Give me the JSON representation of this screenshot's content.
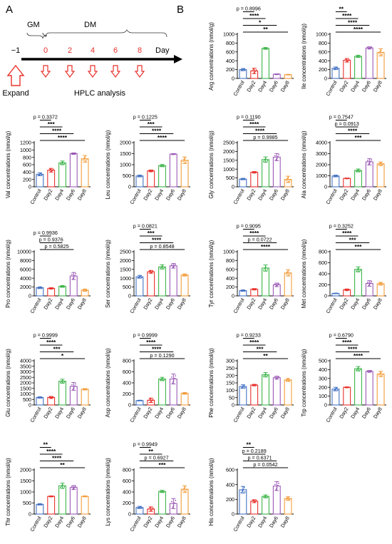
{
  "panel_labels": {
    "a": "A",
    "b": "B"
  },
  "timeline": {
    "gm_label": "GM",
    "dm_label": "DM",
    "axis_label": "Day",
    "ticks": [
      "−1",
      "0",
      "2",
      "4",
      "6",
      "8"
    ],
    "expand_label": "Expand",
    "hplc_label": "HPLC analysis"
  },
  "colors": {
    "Control": "#4472C4",
    "Day2": "#E8302A",
    "Day4": "#3CB54A",
    "Day6": "#9B59B6",
    "Day8": "#F39C3A",
    "arrow_red": "#E8302A"
  },
  "chart_data": [
    {
      "type": "bar",
      "ylabel": "Arg concentrations (nmol/g)",
      "categories": [
        "Control",
        "Day2",
        "Day4",
        "Day6",
        "Day8"
      ],
      "values": [
        200,
        170,
        680,
        95,
        85
      ],
      "errors": [
        25,
        60,
        20,
        8,
        6
      ],
      "ylim": [
        0,
        1000
      ],
      "yticks": [
        0,
        200,
        400,
        600,
        800,
        1000
      ],
      "sig": [
        {
          "to": "Day2",
          "label": "p = 0.8996"
        },
        {
          "to": "Day4",
          "label": "****"
        },
        {
          "to": "Day6",
          "label": "*"
        },
        {
          "to": "Day8",
          "label": "**"
        }
      ]
    },
    {
      "type": "bar",
      "ylabel": "Ile concentrations (nmol/g)",
      "categories": [
        "Control",
        "Day2",
        "Day4",
        "Day6",
        "Day8"
      ],
      "values": [
        230,
        410,
        500,
        690,
        590
      ],
      "errors": [
        30,
        40,
        25,
        25,
        80
      ],
      "ylim": [
        0,
        1000
      ],
      "yticks": [
        0,
        200,
        400,
        600,
        800,
        1000
      ],
      "sig": [
        {
          "to": "Day2",
          "label": "**"
        },
        {
          "to": "Day4",
          "label": "****"
        },
        {
          "to": "Day6",
          "label": "****"
        },
        {
          "to": "Day8",
          "label": "****"
        }
      ]
    },
    {
      "type": "bar",
      "ylabel": "Val concentrations (nmol/g)",
      "categories": [
        "Control",
        "Day2",
        "Day4",
        "Day6",
        "Day8"
      ],
      "values": [
        340,
        450,
        650,
        900,
        760
      ],
      "errors": [
        40,
        50,
        50,
        20,
        90
      ],
      "ylim": [
        0,
        1200
      ],
      "yticks": [
        0,
        200,
        400,
        600,
        800,
        1000,
        1200
      ],
      "sig": [
        {
          "to": "Day2",
          "label": "p = 0.3372"
        },
        {
          "to": "Day4",
          "label": "***"
        },
        {
          "to": "Day6",
          "label": "****"
        },
        {
          "to": "Day8",
          "label": "****"
        }
      ]
    },
    {
      "type": "bar",
      "ylabel": "Leu concentrations (nmol/g)",
      "categories": [
        "Control",
        "Day2",
        "Day4",
        "Day6",
        "Day8"
      ],
      "values": [
        490,
        720,
        960,
        1480,
        1200
      ],
      "errors": [
        40,
        40,
        50,
        20,
        150
      ],
      "ylim": [
        0,
        2000
      ],
      "yticks": [
        0,
        500,
        1000,
        1500,
        2000
      ],
      "sig": [
        {
          "to": "Day2",
          "label": "p = 0.1225"
        },
        {
          "to": "Day4",
          "label": "***"
        },
        {
          "to": "Day6",
          "label": "****"
        },
        {
          "to": "Day8",
          "label": "****"
        }
      ]
    },
    {
      "type": "bar",
      "ylabel": "Gly concentrations (nmol/g)",
      "categories": [
        "Control",
        "Day2",
        "Day4",
        "Day6",
        "Day8"
      ],
      "values": [
        440,
        820,
        1540,
        1680,
        420
      ],
      "errors": [
        40,
        40,
        150,
        200,
        180
      ],
      "ylim": [
        0,
        2500
      ],
      "yticks": [
        0,
        500,
        1000,
        1500,
        2000,
        2500
      ],
      "sig": [
        {
          "to": "Day2",
          "label": "p = 0.1190"
        },
        {
          "to": "Day4",
          "label": "****"
        },
        {
          "to": "Day6",
          "label": "****"
        },
        {
          "to": "Day8",
          "label": "p = 0.9985"
        }
      ]
    },
    {
      "type": "bar",
      "ylabel": "Ala concentrations (nmol/g)",
      "categories": [
        "Control",
        "Day2",
        "Day4",
        "Day6",
        "Day8"
      ],
      "values": [
        980,
        760,
        1480,
        2260,
        2080
      ],
      "errors": [
        80,
        30,
        130,
        280,
        160
      ],
      "ylim": [
        0,
        4000
      ],
      "yticks": [
        0,
        1000,
        2000,
        3000,
        4000
      ],
      "sig": [
        {
          "to": "Day2",
          "label": "p = 0.7547"
        },
        {
          "to": "Day4",
          "label": "p = 0.0913"
        },
        {
          "to": "Day6",
          "label": "****"
        },
        {
          "to": "Day8",
          "label": "***"
        }
      ]
    },
    {
      "type": "bar",
      "ylabel": "Pro concentrations (nmol/g)",
      "categories": [
        "Control",
        "Day2",
        "Day4",
        "Day6",
        "Day8"
      ],
      "values": [
        1850,
        1700,
        2150,
        4500,
        1300
      ],
      "errors": [
        200,
        150,
        200,
        800,
        250
      ],
      "ylim": [
        0,
        10000
      ],
      "yticks": [
        0,
        2000,
        4000,
        6000,
        8000,
        10000
      ],
      "sig": [
        {
          "to": "Day2",
          "label": "p = 0.9936"
        },
        {
          "to": "Day4",
          "label": "p = 0.9376"
        },
        {
          "to": "Day6",
          "label": "p = 0.5825"
        }
      ]
    },
    {
      "type": "bar",
      "ylabel": "Ser concentrations (nmol/g)",
      "categories": [
        "Control",
        "Day2",
        "Day4",
        "Day6",
        "Day8"
      ],
      "values": [
        1080,
        1360,
        1640,
        1700,
        1180
      ],
      "errors": [
        80,
        80,
        120,
        130,
        60
      ],
      "ylim": [
        0,
        2500
      ],
      "yticks": [
        0,
        500,
        1000,
        1500,
        2000,
        2500
      ],
      "sig": [
        {
          "to": "Day2",
          "label": "p = 0.0821"
        },
        {
          "to": "Day4",
          "label": "***"
        },
        {
          "to": "Day6",
          "label": "****"
        },
        {
          "to": "Day8",
          "label": "p = 0.8548"
        }
      ]
    },
    {
      "type": "bar",
      "ylabel": "Tyr concentrations (nmol/g)",
      "categories": [
        "Control",
        "Day2",
        "Day4",
        "Day6",
        "Day8"
      ],
      "values": [
        120,
        150,
        630,
        250,
        520
      ],
      "errors": [
        15,
        15,
        70,
        40,
        70
      ],
      "ylim": [
        0,
        1000
      ],
      "yticks": [
        0,
        200,
        400,
        600,
        800,
        1000
      ],
      "sig": [
        {
          "to": "Day2",
          "label": "p = 0.9095"
        },
        {
          "to": "Day4",
          "label": "****"
        },
        {
          "to": "Day6",
          "label": "p = 0.0722"
        },
        {
          "to": "Day8",
          "label": "****"
        }
      ]
    },
    {
      "type": "bar",
      "ylabel": "Met concentrations (nmol/g)",
      "categories": [
        "Control",
        "Day2",
        "Day4",
        "Day6",
        "Day8"
      ],
      "values": [
        45,
        110,
        480,
        225,
        220
      ],
      "errors": [
        5,
        15,
        45,
        50,
        25
      ],
      "ylim": [
        0,
        800
      ],
      "yticks": [
        0,
        200,
        400,
        600,
        800
      ],
      "sig": [
        {
          "to": "Day2",
          "label": "p = 0.3252"
        },
        {
          "to": "Day4",
          "label": "****"
        },
        {
          "to": "Day6",
          "label": "***"
        },
        {
          "to": "Day8",
          "label": "***"
        }
      ]
    },
    {
      "type": "bar",
      "ylabel": "Glu concentrations (nmol/g)",
      "categories": [
        "Control",
        "Day2",
        "Day4",
        "Day6",
        "Day8"
      ],
      "values": [
        680,
        680,
        2150,
        1680,
        1420
      ],
      "errors": [
        60,
        90,
        180,
        350,
        60
      ],
      "ylim": [
        0,
        4000
      ],
      "yticks": [
        0,
        500,
        1000,
        1500,
        2000,
        2500,
        3000,
        3500,
        4000
      ],
      "sig": [
        {
          "to": "Day2",
          "label": "p = 0.9999"
        },
        {
          "to": "Day4",
          "label": "****"
        },
        {
          "to": "Day6",
          "label": "***"
        },
        {
          "to": "Day8",
          "label": "*"
        }
      ]
    },
    {
      "type": "bar",
      "ylabel": "Asp concentrations (nmol/g)",
      "categories": [
        "Control",
        "Day2",
        "Day4",
        "Day6",
        "Day8"
      ],
      "values": [
        80,
        85,
        470,
        470,
        210
      ],
      "errors": [
        6,
        40,
        30,
        90,
        15
      ],
      "ylim": [
        0,
        800
      ],
      "yticks": [
        0,
        200,
        400,
        600,
        800
      ],
      "sig": [
        {
          "to": "Day2",
          "label": "p = 0.9999"
        },
        {
          "to": "Day4",
          "label": "****"
        },
        {
          "to": "Day6",
          "label": "****"
        },
        {
          "to": "Day8",
          "label": "p = 0.1290"
        }
      ]
    },
    {
      "type": "bar",
      "ylabel": "Phe concentrations (nmol/g)",
      "categories": [
        "Control",
        "Day2",
        "Day4",
        "Day6",
        "Day8"
      ],
      "values": [
        125,
        135,
        205,
        185,
        170
      ],
      "errors": [
        12,
        5,
        15,
        10,
        10
      ],
      "ylim": [
        0,
        300
      ],
      "yticks": [
        0,
        50,
        100,
        150,
        200,
        250,
        300
      ],
      "sig": [
        {
          "to": "Day2",
          "label": "p = 0.9233"
        },
        {
          "to": "Day4",
          "label": "****"
        },
        {
          "to": "Day6",
          "label": "***"
        },
        {
          "to": "Day8",
          "label": "**"
        }
      ]
    },
    {
      "type": "bar",
      "ylabel": "Trp concentrations (nmol/g)",
      "categories": [
        "Control",
        "Day2",
        "Day4",
        "Day6",
        "Day8"
      ],
      "values": [
        180,
        200,
        410,
        380,
        350
      ],
      "errors": [
        20,
        5,
        25,
        10,
        30
      ],
      "ylim": [
        0,
        500
      ],
      "yticks": [
        0,
        100,
        200,
        300,
        400,
        500
      ],
      "sig": [
        {
          "to": "Day2",
          "label": "p = 0.6790"
        },
        {
          "to": "Day4",
          "label": "****"
        },
        {
          "to": "Day6",
          "label": "****"
        },
        {
          "to": "Day8",
          "label": "****"
        }
      ]
    },
    {
      "type": "bar",
      "ylabel": "Thr concentrations (nmol/g)",
      "categories": [
        "Control",
        "Day2",
        "Day4",
        "Day6",
        "Day8"
      ],
      "values": [
        440,
        800,
        1280,
        1200,
        800
      ],
      "errors": [
        30,
        20,
        120,
        90,
        20
      ],
      "ylim": [
        0,
        2000
      ],
      "yticks": [
        0,
        500,
        1000,
        1500,
        2000
      ],
      "sig": [
        {
          "to": "Day2",
          "label": "**"
        },
        {
          "to": "Day4",
          "label": "****"
        },
        {
          "to": "Day6",
          "label": "****"
        },
        {
          "to": "Day8",
          "label": "**"
        }
      ]
    },
    {
      "type": "bar",
      "ylabel": "Lys concentrations (nmol/g)",
      "categories": [
        "Control",
        "Day2",
        "Day4",
        "Day6",
        "Day8"
      ],
      "values": [
        120,
        90,
        410,
        190,
        450
      ],
      "errors": [
        20,
        40,
        20,
        90,
        60
      ],
      "ylim": [
        0,
        800
      ],
      "yticks": [
        0,
        200,
        400,
        600,
        800
      ],
      "sig": [
        {
          "to": "Day2",
          "label": "p = 0.9949"
        },
        {
          "to": "Day4",
          "label": "**"
        },
        {
          "to": "Day6",
          "label": "p = 0.6927"
        },
        {
          "to": "Day8",
          "label": "***"
        }
      ]
    },
    {
      "type": "bar",
      "ylabel": "His concentrations (nmol/g)",
      "categories": [
        "Control",
        "Day2",
        "Day4",
        "Day6",
        "Day8"
      ],
      "values": [
        330,
        175,
        240,
        380,
        210
      ],
      "errors": [
        45,
        20,
        20,
        60,
        25
      ],
      "ylim": [
        0,
        600
      ],
      "yticks": [
        0,
        200,
        400,
        600
      ],
      "sig": [
        {
          "to": "Day2",
          "label": "**"
        },
        {
          "to": "Day4",
          "label": "p = 0.2189"
        },
        {
          "to": "Day6",
          "label": "p = 0.6371"
        },
        {
          "to": "Day8",
          "label": "p = 0.0542"
        }
      ]
    }
  ]
}
